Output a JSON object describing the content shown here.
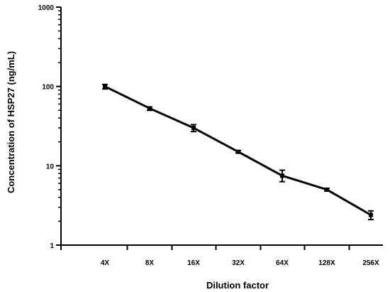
{
  "chart_data": {
    "type": "line",
    "title": "",
    "xlabel": "Dilution factor",
    "ylabel": "Concentration of HSP27 (ng/mL)",
    "x_scale": "categorical",
    "y_scale": "log",
    "ylim": [
      1,
      1000
    ],
    "y_ticks": [
      1,
      10,
      100,
      1000
    ],
    "y_tick_labels": [
      "1",
      "10",
      "100",
      "1000"
    ],
    "categories": [
      "4X",
      "8X",
      "16X",
      "32X",
      "64X",
      "128X",
      "256X"
    ],
    "grid": false,
    "legend": "none",
    "series": [
      {
        "values": [
          100,
          53,
          30,
          15,
          7.5,
          5,
          2.4
        ],
        "error_low": [
          93,
          50,
          27,
          14.5,
          6.3,
          4.8,
          2.1
        ],
        "error_high": [
          106,
          55,
          33,
          15.5,
          8.8,
          5.2,
          2.7
        ],
        "color": "#000000"
      }
    ]
  }
}
